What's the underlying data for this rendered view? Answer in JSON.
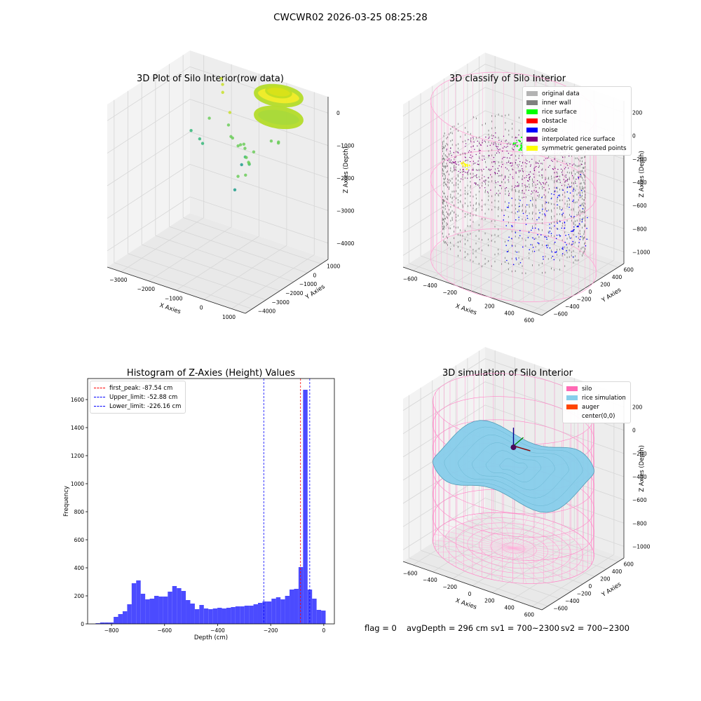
{
  "suptitle": "CWCWR02 2026-03-25 08:25:28",
  "footer": {
    "flag": "flag = 0",
    "avg_depth": "avgDepth = 296 cm",
    "sv1": "sv1 = 700~2300",
    "sv2": "sv2 = 700~2300"
  },
  "colors": {
    "hist_bar": "#4b4bff",
    "silo": "#ff69b4",
    "rice": "#87ceeb",
    "auger": "#ff4500",
    "noise": "#0000ff",
    "rice_surface": "#00ff00",
    "inner_wall": "#808080"
  },
  "chart_data": [
    {
      "type": "scatter",
      "projection": "3d",
      "title": "3D Plot of Silo Interior(row data)",
      "xlabel": "X Axies",
      "ylabel": "Y Axies",
      "zlabel": "Z Axies (Depth)",
      "xticks": [
        "−3000",
        "−2000",
        "−1000",
        "0",
        "1000"
      ],
      "yticks": [
        "−4000",
        "−3000",
        "−2000",
        "−1000",
        "0",
        "1000"
      ],
      "zticks": [
        "−4000",
        "−3000",
        "−2000",
        "−1000",
        "0"
      ],
      "xlim": [
        -3200,
        1600
      ],
      "ylim": [
        -4000,
        1500
      ],
      "zlim": [
        -4500,
        0
      ],
      "ring": {
        "cx": 300,
        "cy": 700,
        "z_top": -100,
        "z_bottom": -700,
        "radius": 700
      },
      "points": [
        {
          "x": -2900,
          "y": 1000,
          "z": -2000
        },
        {
          "x": -2600,
          "y": 1000,
          "z": -2150
        },
        {
          "x": -2500,
          "y": 1000,
          "z": -2250
        },
        {
          "x": -1800,
          "y": 1000,
          "z": -650
        },
        {
          "x": -1750,
          "y": 800,
          "z": -200
        },
        {
          "x": -1700,
          "y": 800,
          "z": -350
        },
        {
          "x": -1500,
          "y": 900,
          "z": -1100
        },
        {
          "x": -1300,
          "y": 700,
          "z": -1700
        },
        {
          "x": -1600,
          "y": 1000,
          "z": -1500
        },
        {
          "x": -1900,
          "y": 300,
          "z": -1200
        },
        {
          "x": -1200,
          "y": 400,
          "z": -1550
        },
        {
          "x": -900,
          "y": 300,
          "z": -1700
        },
        {
          "x": -700,
          "y": 300,
          "z": -1600
        },
        {
          "x": -600,
          "y": 200,
          "z": -1900
        },
        {
          "x": -500,
          "y": -300,
          "z": -1400
        },
        {
          "x": -400,
          "y": -200,
          "z": -1500
        },
        {
          "x": -300,
          "y": -300,
          "z": -1700
        },
        {
          "x": -200,
          "y": 0,
          "z": -1600
        },
        {
          "x": -250,
          "y": -200,
          "z": -1900
        },
        {
          "x": -150,
          "y": -400,
          "z": -1800
        },
        {
          "x": -700,
          "y": -300,
          "z": -2700
        },
        {
          "x": -1300,
          "y": 1300,
          "z": -2600
        },
        {
          "x": 300,
          "y": -1300,
          "z": -1400
        },
        {
          "x": 300,
          "y": -1500,
          "z": -1700
        },
        {
          "x": 300,
          "y": -2000,
          "z": -1600
        },
        {
          "x": 200,
          "y": 400,
          "z": -1300
        },
        {
          "x": 400,
          "y": 500,
          "z": -1300
        },
        {
          "x": 500,
          "y": 300,
          "z": -1250
        }
      ]
    },
    {
      "type": "scatter",
      "projection": "3d",
      "title": "3D classify of Silo Interior",
      "xlabel": "X Axies",
      "ylabel": "Y Axies",
      "zlabel": "Z Axies (Depth)",
      "xticks": [
        "−600",
        "−400",
        "−200",
        "0",
        "200",
        "400",
        "600"
      ],
      "yticks": [
        "−600",
        "−400",
        "−200",
        "0",
        "200",
        "400",
        "600"
      ],
      "zticks": [
        "−1000",
        "−800",
        "−600",
        "−400",
        "−200",
        "0",
        "200"
      ],
      "xlim": [
        -700,
        700
      ],
      "ylim": [
        -700,
        700
      ],
      "zlim": [
        -1100,
        250
      ],
      "silo": {
        "radius": 720,
        "z_top": 200,
        "z_bottom": -1100
      },
      "legend": [
        {
          "label": "original data",
          "color": "#b3b3b3"
        },
        {
          "label": "inner wall",
          "color": "#808080"
        },
        {
          "label": "rice surface",
          "color": "#00ff00"
        },
        {
          "label": "obstacle",
          "color": "#ff0000"
        },
        {
          "label": "noise",
          "color": "#0000ff"
        },
        {
          "label": "interpolated rice surface",
          "color": "#800080"
        },
        {
          "label": "symmetric generated points",
          "color": "#ffff00"
        }
      ]
    },
    {
      "type": "bar",
      "title": "Histogram of Z-Axies (Height) Values",
      "xlabel": "Depth (cm)",
      "ylabel": "Frequency",
      "xlim": [
        -890,
        40
      ],
      "ylim": [
        0,
        1750
      ],
      "xticks": [
        -800,
        -600,
        -400,
        -200,
        0
      ],
      "yticks": [
        0,
        200,
        400,
        600,
        800,
        1000,
        1200,
        1400,
        1600
      ],
      "bin_start": -860,
      "bin_width": 17,
      "values": [
        5,
        10,
        10,
        10,
        50,
        70,
        90,
        140,
        290,
        310,
        215,
        175,
        180,
        200,
        195,
        195,
        230,
        270,
        255,
        235,
        170,
        145,
        105,
        135,
        110,
        105,
        110,
        115,
        110,
        115,
        120,
        125,
        125,
        130,
        130,
        140,
        150,
        160,
        160,
        180,
        190,
        175,
        200,
        245,
        250,
        405,
        1670,
        245,
        180,
        100,
        95
      ],
      "vlines": [
        {
          "label": "first_peak: -87.54 cm",
          "x": -87.54,
          "color": "#ff0000"
        },
        {
          "label": "Upper_limit: -52.88 cm",
          "x": -52.88,
          "color": "#0000ff"
        },
        {
          "label": "Lower_limit: -226.16 cm",
          "x": -226.16,
          "color": "#0000ff"
        }
      ]
    },
    {
      "type": "area",
      "projection": "3d",
      "title": "3D simulation of Silo Interior",
      "xlabel": "X Axies",
      "ylabel": "Y Axies",
      "zlabel": "Z Axies (Depth)",
      "xticks": [
        "−600",
        "−400",
        "−200",
        "0",
        "200",
        "400",
        "600"
      ],
      "yticks": [
        "−600",
        "−400",
        "−200",
        "0",
        "200",
        "400",
        "600"
      ],
      "zticks": [
        "−1000",
        "−800",
        "−600",
        "−400",
        "−200",
        "0",
        "200"
      ],
      "xlim": [
        -700,
        700
      ],
      "ylim": [
        -700,
        700
      ],
      "zlim": [
        -1100,
        300
      ],
      "silo": {
        "radius": 700,
        "z_top": 200,
        "z_bottom": -1000
      },
      "surface_depth": -296,
      "legend": [
        {
          "label": "silo",
          "color": "#ff69b4"
        },
        {
          "label": "rice simulation",
          "color": "#87ceeb"
        },
        {
          "label": "auger",
          "color": "#ff4500"
        },
        {
          "label": "center(0,0)",
          "color": ""
        }
      ]
    }
  ]
}
